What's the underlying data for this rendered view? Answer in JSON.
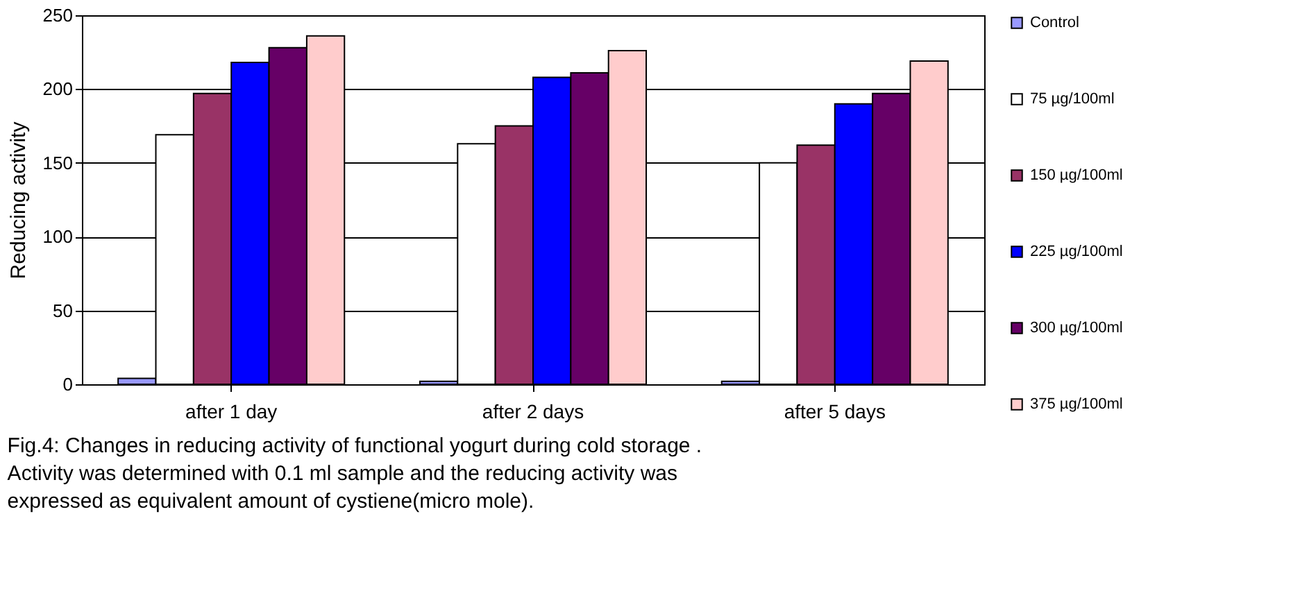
{
  "chart_data": {
    "type": "bar",
    "ylabel": "Reducing activity",
    "categories": [
      "after 1 day",
      "after 2 days",
      "after 5 days"
    ],
    "series": [
      {
        "name": "Control",
        "color": "#9999ff",
        "values": [
          4,
          2,
          2
        ]
      },
      {
        "name": "75 µg/100ml",
        "color": "#ffffff",
        "values": [
          169,
          163,
          150
        ]
      },
      {
        "name": "150 µg/100ml",
        "color": "#993366",
        "values": [
          197,
          175,
          162
        ]
      },
      {
        "name": "225 µg/100ml",
        "color": "#0000ff",
        "values": [
          218,
          208,
          190
        ]
      },
      {
        "name": "300 µg/100ml",
        "color": "#660066",
        "values": [
          228,
          211,
          197
        ]
      },
      {
        "name": "375 µg/100ml",
        "color": "#ffcccc",
        "values": [
          236,
          226,
          219
        ]
      }
    ],
    "ylim": [
      0,
      250
    ],
    "yticks": [
      0,
      50,
      100,
      150,
      200,
      250
    ],
    "grid": "y",
    "legend": "right",
    "annotations": [
      "Fig.4: Changes in reducing activity of functional yogurt during cold storage . Activity  was determined with 0.1 ml sample and the reducing activity was expressed as equivalent amount of cystiene(micro mole)."
    ]
  }
}
